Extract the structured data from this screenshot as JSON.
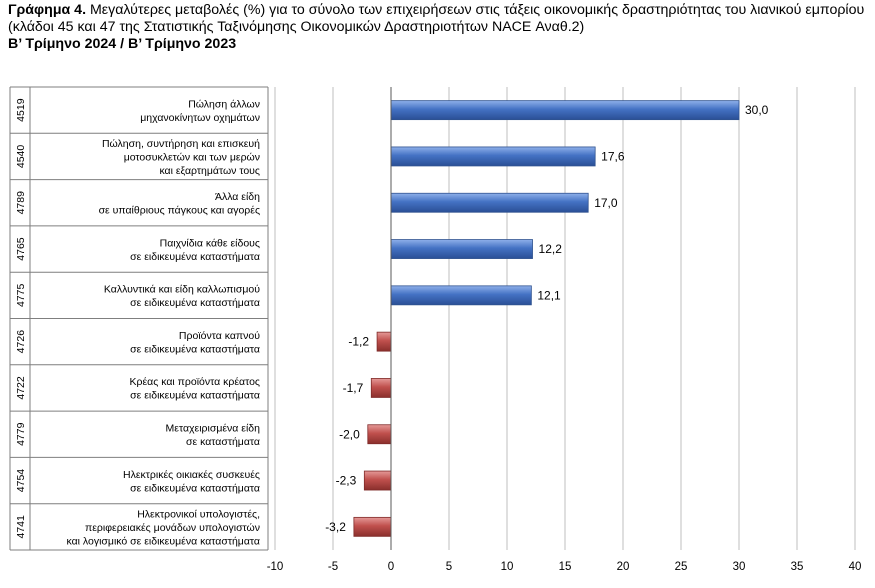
{
  "header": {
    "lead": "Γράφημα 4.",
    "text": " Μεγαλύτερες μεταβολές (%) για το σύνολο των επιχειρήσεων στις τάξεις οικονομικής δραστηριότητας του λιανικού εμπορίου (κλάδοι 45 και 47 της Στατιστικής Ταξινόμησης Οικονομικών Δραστηριοτήτων NACE Αναθ.2)",
    "subtitle": "Β’ Τρίμηνο 2024 / Β’ Τρίμηνο 2023"
  },
  "colors": {
    "positive": "#4472C4",
    "negative": "#C0504D",
    "grid": "#bfbfbf",
    "border": "#7f7f7f"
  },
  "chart_data": {
    "type": "bar",
    "orientation": "horizontal",
    "title": "Γράφημα 4. Μεγαλύτερες μεταβολές (%) για το σύνολο των επιχειρήσεων στις τάξεις οικονομικής δραστηριότητας του λιανικού εμπορίου (κλάδοι 45 και 47 της Στατιστικής Ταξινόμησης Οικονομικών Δραστηριοτήτων NACE Αναθ.2)",
    "subtitle": "Β’ Τρίμηνο 2024 / Β’ Τρίμηνο 2023",
    "xlim": [
      -10,
      40
    ],
    "xticks": [
      -10,
      -5,
      0,
      5,
      10,
      15,
      20,
      25,
      30,
      35,
      40
    ],
    "xtick_labels": [
      "-10",
      "-5",
      "0",
      "5",
      "10",
      "15",
      "20",
      "25",
      "30",
      "35",
      "40"
    ],
    "grid": "vertical",
    "legend": "none",
    "categories": [
      {
        "code": "4519",
        "label": [
          "Πώληση άλλων",
          "μηχανοκίνητων οχημάτων"
        ],
        "value": 30.0,
        "value_label": "30,0"
      },
      {
        "code": "4540",
        "label": [
          "Πώληση, συντήρηση και επισκευή",
          "μοτοσυκλετών και των μερών",
          "και εξαρτημάτων τους"
        ],
        "value": 17.6,
        "value_label": "17,6"
      },
      {
        "code": "4789",
        "label": [
          "Άλλα είδη",
          "σε υπαίθριους πάγκους και αγορές"
        ],
        "value": 17.0,
        "value_label": "17,0"
      },
      {
        "code": "4765",
        "label": [
          "Παιχνίδια κάθε είδους",
          "σε ειδικευμένα καταστήματα"
        ],
        "value": 12.2,
        "value_label": "12,2"
      },
      {
        "code": "4775",
        "label": [
          "Καλλυντικά και είδη καλλωπισμού",
          "σε ειδικευμένα καταστήματα"
        ],
        "value": 12.1,
        "value_label": "12,1"
      },
      {
        "code": "4726",
        "label": [
          "Προϊόντα καπνού",
          "σε ειδικευμένα καταστήματα"
        ],
        "value": -1.2,
        "value_label": "-1,2"
      },
      {
        "code": "4722",
        "label": [
          "Κρέας και προϊόντα κρέατος",
          "σε ειδικευμένα καταστήματα"
        ],
        "value": -1.7,
        "value_label": "-1,7"
      },
      {
        "code": "4779",
        "label": [
          "Μεταχειρισμένα είδη",
          "σε καταστήματα"
        ],
        "value": -2.0,
        "value_label": "-2,0"
      },
      {
        "code": "4754",
        "label": [
          "Ηλεκτρικές οικιακές συσκευές",
          "σε ειδικευμένα καταστήματα"
        ],
        "value": -2.3,
        "value_label": "-2,3"
      },
      {
        "code": "4741",
        "label": [
          "Ηλεκτρονικοί υπολογιστές,",
          "περιφερειακές μονάδων υπολογιστών",
          "και λογισμικό σε ειδικευμένα καταστήματα"
        ],
        "value": -3.2,
        "value_label": "-3,2"
      }
    ]
  }
}
